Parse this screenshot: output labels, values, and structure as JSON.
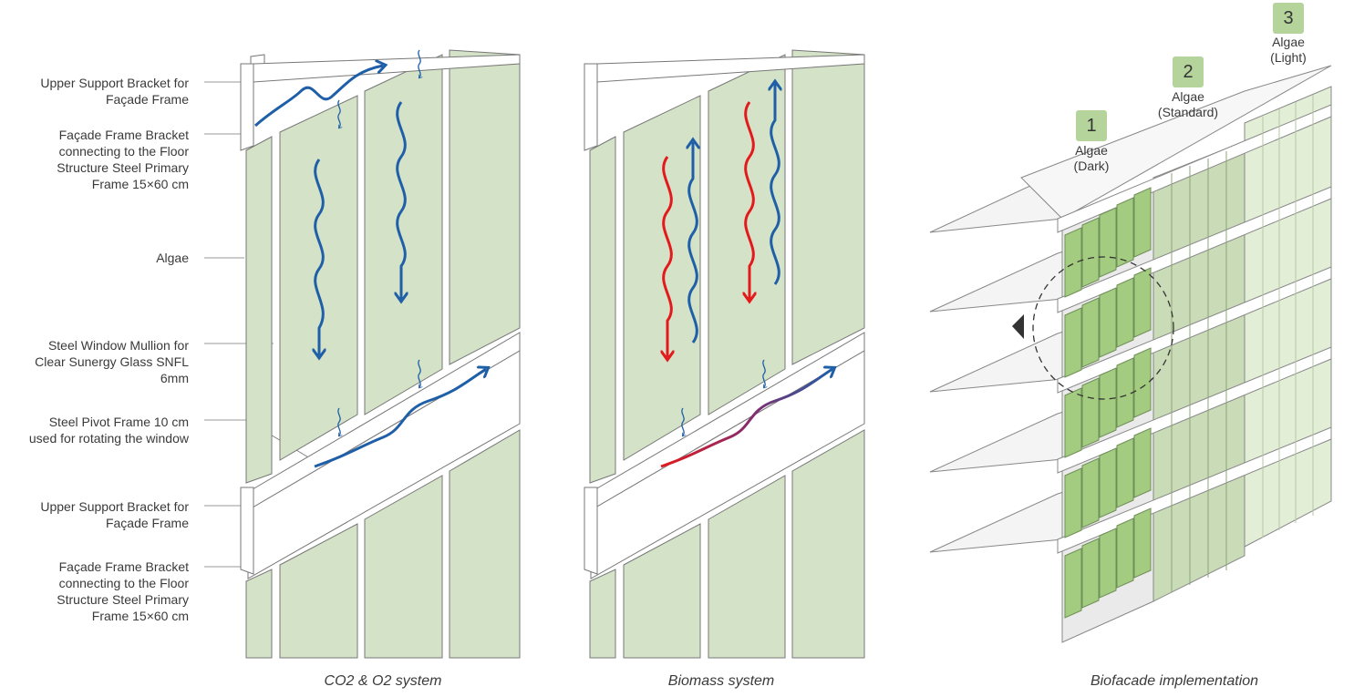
{
  "labels": [
    "Upper Support Bracket for\nFaçade Frame",
    "Façade Frame Bracket\nconnecting to the Floor\nStructure Steel Primary\nFrame 15×60 cm",
    "Algae",
    "Steel Window Mullion for\nClear Sunergy Glass SNFL\n6mm",
    "Steel Pivot Frame 10 cm\nused for rotating the window",
    "Upper Support Bracket for\nFaçade Frame",
    "Façade Frame Bracket\nconnecting to the Floor\nStructure Steel Primary\nFrame 15×60 cm"
  ],
  "captions": {
    "co2": "CO2  & O2  system",
    "biomass": "Biomass system",
    "biofacade": "Biofacade implementation"
  },
  "badges": [
    {
      "num": "1",
      "label": "Algae\n(Dark)"
    },
    {
      "num": "2",
      "label": "Algae\n(Standard)"
    },
    {
      "num": "3",
      "label": "Algae\n(Light)"
    }
  ],
  "colors": {
    "algae_panel": "#d4e2c8",
    "algae_dark": "#a4cc80",
    "algae_standard": "#cadbb7",
    "algae_light": "#e3eed7",
    "flow_blue": "#1f5fa8",
    "flow_red": "#e3191c",
    "badge": "#b5d49b"
  }
}
